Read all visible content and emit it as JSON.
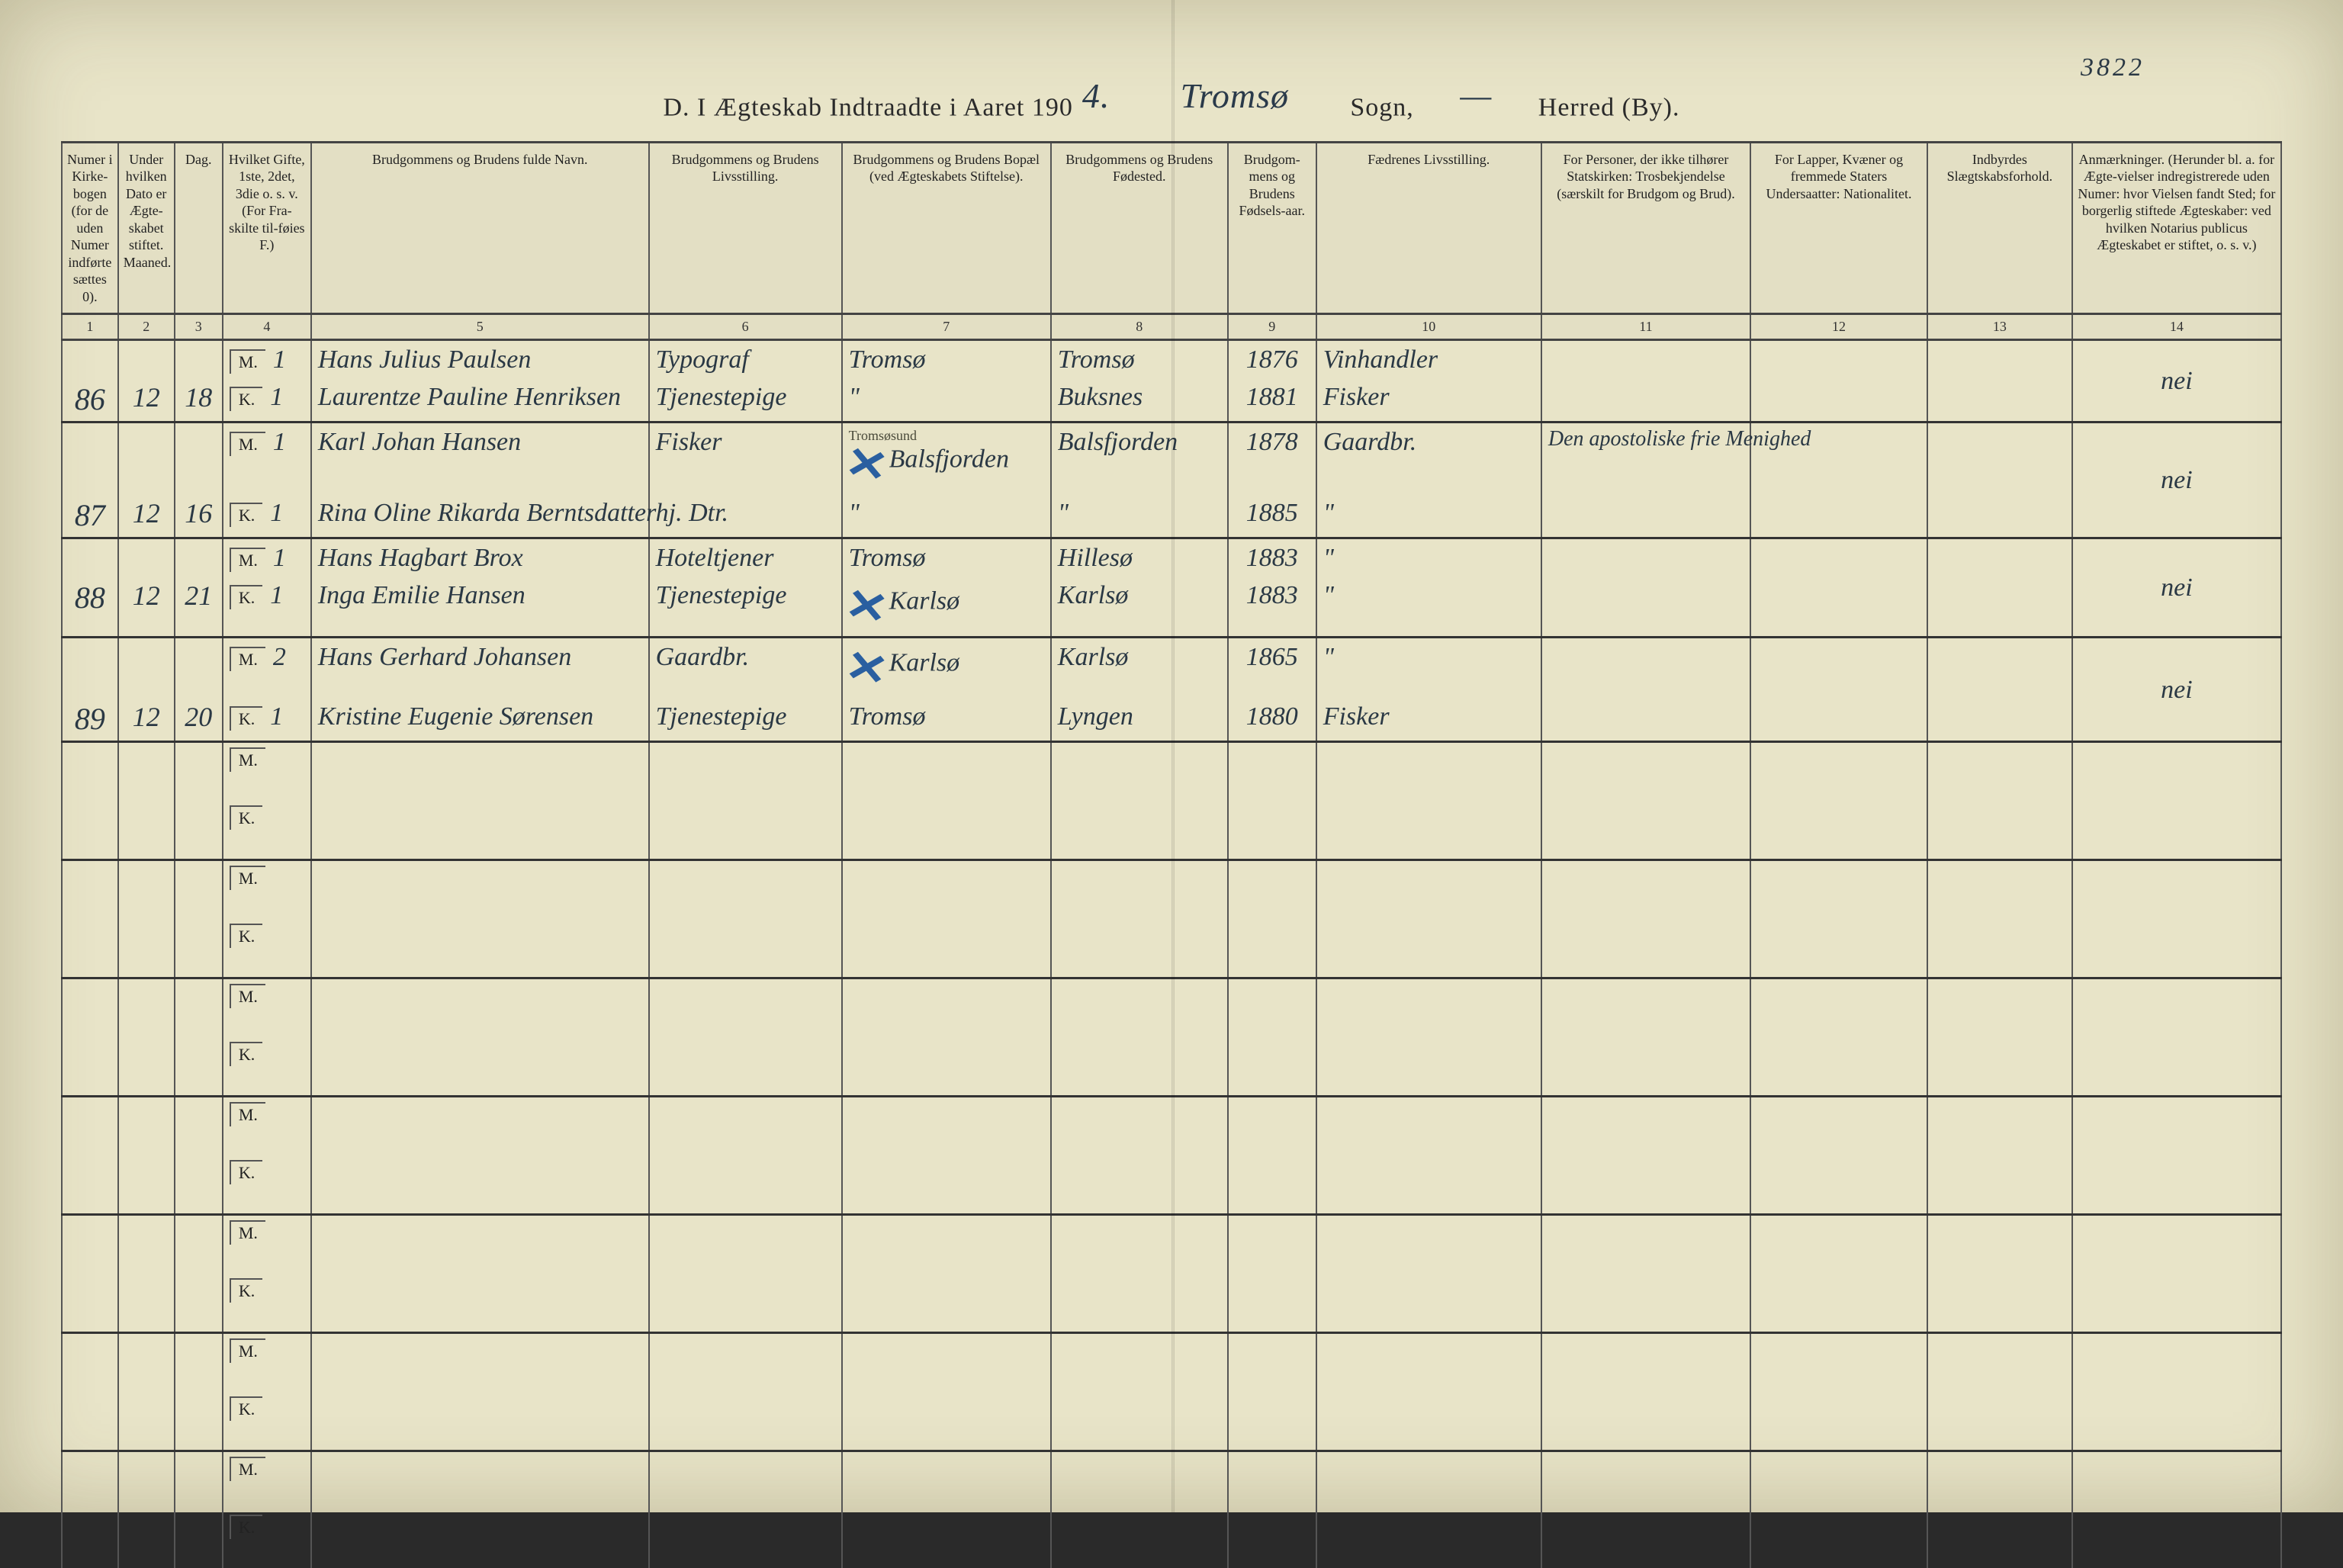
{
  "page_number_top": "3822",
  "title": {
    "prefix": "D.  I Ægteskab Indtraadte i Aaret 190",
    "year_digit": "4.",
    "sogn_hand": "Tromsø",
    "sogn_label": "Sogn,",
    "herred_hand": "—",
    "herred_label": "Herred (By)."
  },
  "columns": [
    {
      "n": "1",
      "label": "Numer i Kirke-bogen (for de uden Numer indførte sættes 0)."
    },
    {
      "n": "2",
      "label": "Under hvilken Dato er Ægte-skabet stiftet.\nMaaned."
    },
    {
      "n": "3",
      "label": "Dag."
    },
    {
      "n": "4",
      "label": "Hvilket Gifte, 1ste, 2det, 3die o. s. v. (For Fra-skilte til-føies F.)"
    },
    {
      "n": "5",
      "label": "Brudgommens og Brudens fulde Navn."
    },
    {
      "n": "6",
      "label": "Brudgommens og Brudens Livsstilling."
    },
    {
      "n": "7",
      "label": "Brudgommens og Brudens Bopæl (ved Ægteskabets Stiftelse)."
    },
    {
      "n": "8",
      "label": "Brudgommens og Brudens Fødested."
    },
    {
      "n": "9",
      "label": "Brudgom-mens og Brudens Fødsels-aar."
    },
    {
      "n": "10",
      "label": "Fædrenes Livsstilling."
    },
    {
      "n": "11",
      "label": "For Personer, der ikke tilhører Statskirken: Trosbekjendelse (særskilt for Brudgom og Brud)."
    },
    {
      "n": "12",
      "label": "For Lapper, Kvæner og fremmede Staters Undersaatter: Nationalitet."
    },
    {
      "n": "13",
      "label": "Indbyrdes Slægtskabsforhold."
    },
    {
      "n": "14",
      "label": "Anmærkninger. (Herunder bl. a. for Ægte-vielser indregistrerede uden Numer: hvor Vielsen fandt Sted; for borgerlig stiftede Ægteskaber: ved hvilken Notarius publicus Ægteskabet er stiftet, o. s. v.)"
    }
  ],
  "records": [
    {
      "no": "86",
      "month": "12",
      "day": "18",
      "m": {
        "gifte": "1",
        "name": "Hans Julius Paulsen",
        "occ": "Typograf",
        "res": "Tromsø",
        "birth": "Tromsø",
        "year": "1876",
        "father": "Vinhandler",
        "faith": "",
        "nat": "",
        "kin": ""
      },
      "k": {
        "gifte": "1",
        "name": "Laurentze Pauline Henriksen",
        "occ": "Tjenestepige",
        "res": "\"",
        "birth": "Buksnes",
        "year": "1881",
        "father": "Fisker",
        "faith": "",
        "nat": "",
        "kin": ""
      },
      "remark": "nei"
    },
    {
      "no": "87",
      "month": "12",
      "day": "16",
      "m": {
        "gifte": "1",
        "name": "Karl Johan Hansen",
        "occ": "Fisker",
        "res": "Balsfjorden",
        "res_note": "Tromsøsund",
        "birth": "Balsfjorden",
        "year": "1878",
        "father": "Gaardbr.",
        "faith": "Den apostoliske frie Menighed",
        "nat": "",
        "kin": "",
        "xmark": true
      },
      "k": {
        "gifte": "1",
        "name": "Rina Oline Rikarda Berntsdatter",
        "occ": "hj. Dtr.",
        "res": "\"",
        "birth": "\"",
        "year": "1885",
        "father": "\"",
        "faith": "",
        "nat": "",
        "kin": ""
      },
      "remark": "nei"
    },
    {
      "no": "88",
      "month": "12",
      "day": "21",
      "m": {
        "gifte": "1",
        "name": "Hans Hagbart Brox",
        "occ": "Hoteltjener",
        "res": "Tromsø",
        "birth": "Hillesø",
        "year": "1883",
        "father": "\"",
        "faith": "",
        "nat": "",
        "kin": ""
      },
      "k": {
        "gifte": "1",
        "name": "Inga Emilie Hansen",
        "occ": "Tjenestepige",
        "res": "Karlsø",
        "birth": "Karlsø",
        "year": "1883",
        "father": "\"",
        "faith": "",
        "nat": "",
        "kin": "",
        "xmark": true
      },
      "remark": "nei"
    },
    {
      "no": "89",
      "month": "12",
      "day": "20",
      "m": {
        "gifte": "2",
        "name": "Hans Gerhard Johansen",
        "occ": "Gaardbr.",
        "res": "Karlsø",
        "birth": "Karlsø",
        "year": "1865",
        "father": "\"",
        "faith": "",
        "nat": "",
        "kin": "",
        "xmark": true
      },
      "k": {
        "gifte": "1",
        "name": "Kristine Eugenie Sørensen",
        "occ": "Tjenestepige",
        "res": "Tromsø",
        "birth": "Lyngen",
        "year": "1880",
        "father": "Fisker",
        "faith": "",
        "nat": "",
        "kin": ""
      },
      "remark": "nei"
    }
  ],
  "empty_rows": 7,
  "style": {
    "page_bg": "#e8e4c8",
    "ink": "#2a3844",
    "rule": "#555",
    "rule_heavy": "#333",
    "blue_x": "#2a5fa0",
    "printed_text": "#222",
    "header_fontsize_pt": 14,
    "hand_fontsize_pt": 26
  }
}
